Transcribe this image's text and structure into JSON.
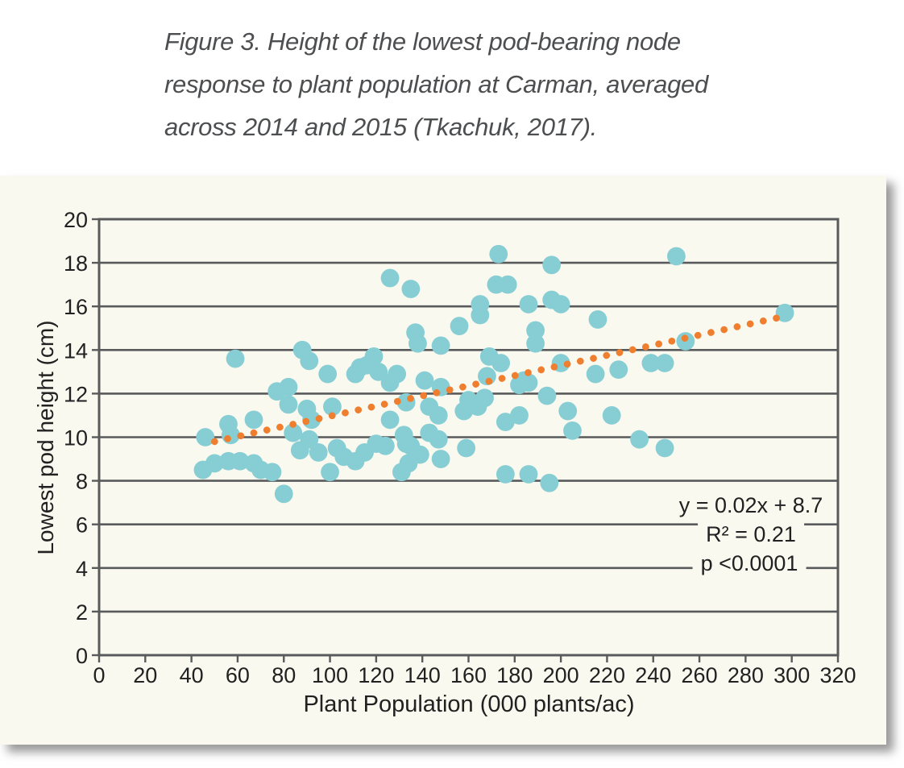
{
  "caption": {
    "lines": [
      "Figure 3. Height of the lowest pod-bearing node",
      "response to plant population at Carman, averaged",
      "across 2014 and 2015 (Tkachuk, 2017)."
    ]
  },
  "chart_data": {
    "type": "scatter",
    "title": "",
    "xlabel": "Plant Population (000 plants/ac)",
    "ylabel": "Lowest pod height (cm)",
    "xlim": [
      0,
      320
    ],
    "ylim": [
      0,
      20
    ],
    "x_ticks": [
      0,
      20,
      40,
      60,
      80,
      100,
      120,
      140,
      160,
      180,
      200,
      220,
      240,
      260,
      280,
      300,
      320
    ],
    "y_ticks": [
      0,
      2,
      4,
      6,
      8,
      10,
      12,
      14,
      16,
      18,
      20
    ],
    "grid": "horizontal",
    "legend": "none",
    "series": [
      {
        "name": "lowest pod height observations",
        "marker": "circle",
        "color": "#87ced4",
        "points": [
          [
            45,
            8.5
          ],
          [
            46,
            10.0
          ],
          [
            50,
            8.8
          ],
          [
            56,
            8.9
          ],
          [
            56,
            10.6
          ],
          [
            57,
            10.1
          ],
          [
            59,
            13.6
          ],
          [
            61,
            8.9
          ],
          [
            67,
            8.8
          ],
          [
            67,
            10.8
          ],
          [
            70,
            8.5
          ],
          [
            75,
            8.4
          ],
          [
            77,
            12.1
          ],
          [
            80,
            7.4
          ],
          [
            82,
            12.3
          ],
          [
            82,
            11.5
          ],
          [
            84,
            10.2
          ],
          [
            87,
            9.4
          ],
          [
            88,
            14.0
          ],
          [
            90,
            11.3
          ],
          [
            91,
            13.5
          ],
          [
            91,
            9.9
          ],
          [
            92,
            10.8
          ],
          [
            95,
            9.3
          ],
          [
            99,
            12.9
          ],
          [
            100,
            8.4
          ],
          [
            101,
            11.4
          ],
          [
            103,
            9.5
          ],
          [
            106,
            9.1
          ],
          [
            111,
            12.9
          ],
          [
            111,
            8.9
          ],
          [
            113,
            13.2
          ],
          [
            115,
            9.3
          ],
          [
            116,
            13.3
          ],
          [
            119,
            13.7
          ],
          [
            120,
            9.7
          ],
          [
            121,
            13.0
          ],
          [
            124,
            9.6
          ],
          [
            126,
            17.3
          ],
          [
            126,
            12.5
          ],
          [
            126,
            10.8
          ],
          [
            129,
            12.9
          ],
          [
            131,
            8.4
          ],
          [
            132,
            10.1
          ],
          [
            133,
            11.6
          ],
          [
            133,
            9.7
          ],
          [
            134,
            8.8
          ],
          [
            135,
            16.8
          ],
          [
            135,
            9.6
          ],
          [
            137,
            14.8
          ],
          [
            138,
            14.3
          ],
          [
            139,
            9.2
          ],
          [
            141,
            12.6
          ],
          [
            143,
            10.2
          ],
          [
            143,
            11.4
          ],
          [
            147,
            9.9
          ],
          [
            147,
            11.0
          ],
          [
            148,
            14.2
          ],
          [
            148,
            12.3
          ],
          [
            148,
            9.0
          ],
          [
            156,
            15.1
          ],
          [
            158,
            11.2
          ],
          [
            159,
            9.5
          ],
          [
            160,
            11.7
          ],
          [
            164,
            11.4
          ],
          [
            165,
            16.1
          ],
          [
            165,
            15.6
          ],
          [
            167,
            11.8
          ],
          [
            168,
            12.8
          ],
          [
            169,
            13.7
          ],
          [
            172,
            17.0
          ],
          [
            173,
            18.4
          ],
          [
            174,
            13.4
          ],
          [
            176,
            10.7
          ],
          [
            176,
            8.3
          ],
          [
            177,
            17.0
          ],
          [
            182,
            12.4
          ],
          [
            182,
            11.0
          ],
          [
            184,
            12.6
          ],
          [
            186,
            12.5
          ],
          [
            186,
            16.1
          ],
          [
            186,
            8.3
          ],
          [
            189,
            14.9
          ],
          [
            189,
            14.3
          ],
          [
            194,
            11.9
          ],
          [
            195,
            7.9
          ],
          [
            196,
            17.9
          ],
          [
            196,
            16.3
          ],
          [
            200,
            16.1
          ],
          [
            200,
            13.4
          ],
          [
            203,
            11.2
          ],
          [
            205,
            10.3
          ],
          [
            215,
            12.9
          ],
          [
            216,
            15.4
          ],
          [
            222,
            11.0
          ],
          [
            225,
            13.1
          ],
          [
            234,
            9.9
          ],
          [
            239,
            13.4
          ],
          [
            245,
            13.4
          ],
          [
            245,
            9.5
          ],
          [
            250,
            18.3
          ],
          [
            254,
            14.4
          ],
          [
            297,
            15.7
          ]
        ]
      }
    ],
    "trendline": {
      "style": "dotted",
      "color": "#ef7f2e",
      "start": [
        50,
        9.8
      ],
      "end": [
        295,
        15.5
      ]
    },
    "annotations": [
      "y = 0.02x + 8.7",
      "R² = 0.21",
      "p <0.0001"
    ]
  },
  "colors": {
    "panel_background": "#faf9ef",
    "page_background": "#ffffff",
    "gridline": "#595a5c",
    "axis_text": "#232021",
    "caption_text": "#4d4e50",
    "point": "#87ced4",
    "trendline": "#ef7f2e"
  }
}
